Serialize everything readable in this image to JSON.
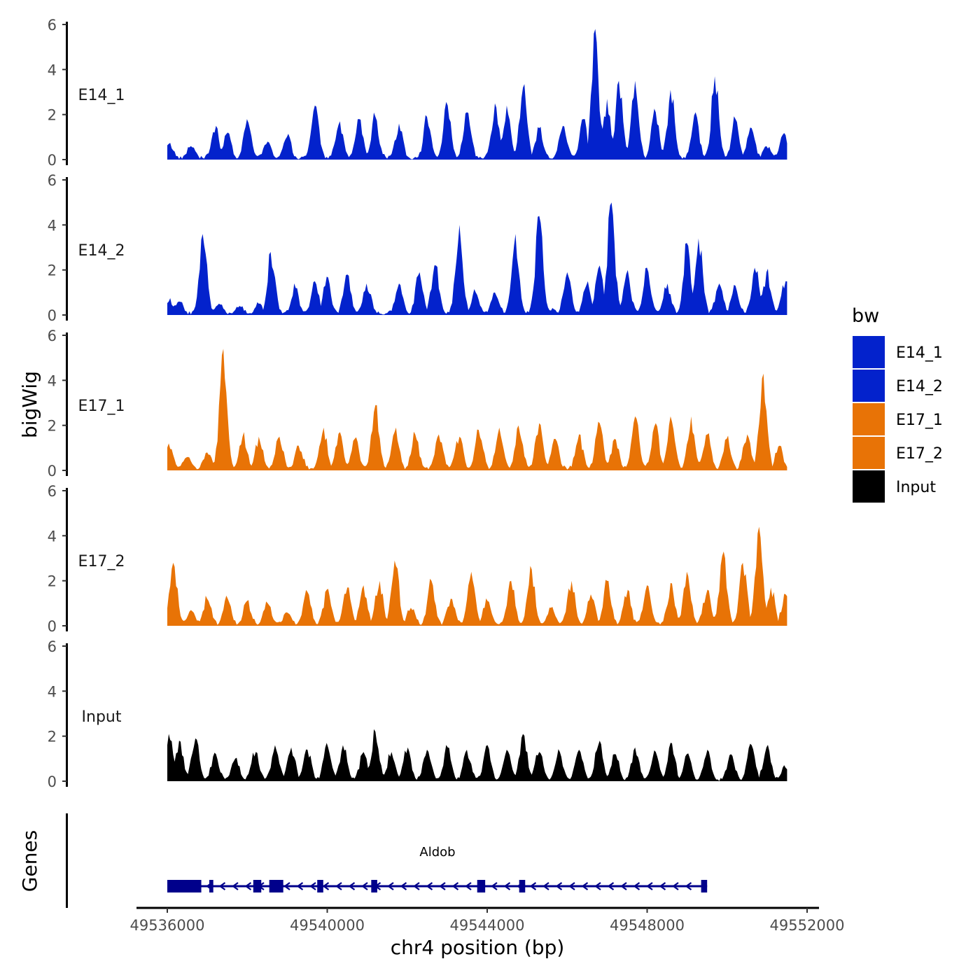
{
  "chart_data": {
    "type": "area",
    "ylabel": "bigWig",
    "xlabel": "chr4 position (bp)",
    "xlim": [
      49535800,
      49552500
    ],
    "data_range": [
      49536000,
      49551500
    ],
    "ylim": [
      0,
      6
    ],
    "y_ticks": [
      0,
      2,
      4,
      6
    ],
    "y_tick_labels": [
      "0",
      "2",
      "4",
      "6"
    ],
    "x_ticks": [
      49536000,
      49540000,
      49544000,
      49548000,
      49552000
    ],
    "x_tick_labels": [
      "49536000",
      "49540000",
      "49544000",
      "49548000",
      "49552000"
    ],
    "legend_title": "bw",
    "legend_position": "right",
    "series": [
      {
        "name": "E14_1",
        "color": "#0322CC",
        "peaks": [
          [
            49536050,
            0.7
          ],
          [
            49536600,
            0.6
          ],
          [
            49537200,
            1.5
          ],
          [
            49537500,
            1.2
          ],
          [
            49538000,
            1.8
          ],
          [
            49538500,
            0.8
          ],
          [
            49539000,
            1.0
          ],
          [
            49539700,
            2.4
          ],
          [
            49540300,
            1.7
          ],
          [
            49540800,
            1.8
          ],
          [
            49541200,
            1.9
          ],
          [
            49541800,
            1.6
          ],
          [
            49542500,
            1.9
          ],
          [
            49543000,
            2.4
          ],
          [
            49543500,
            2.1
          ],
          [
            49544200,
            2.5
          ],
          [
            49544500,
            2.4
          ],
          [
            49544900,
            3.2
          ],
          [
            49545300,
            1.4
          ],
          [
            49545900,
            1.5
          ],
          [
            49546400,
            1.8
          ],
          [
            49546700,
            5.8
          ],
          [
            49547000,
            2.7
          ],
          [
            49547300,
            3.5
          ],
          [
            49547700,
            3.5
          ],
          [
            49548200,
            2.1
          ],
          [
            49548600,
            3.1
          ],
          [
            49549200,
            2.1
          ],
          [
            49549700,
            3.7
          ],
          [
            49550200,
            1.8
          ],
          [
            49550600,
            1.4
          ],
          [
            49551000,
            0.6
          ],
          [
            49551400,
            1.1
          ]
        ]
      },
      {
        "name": "E14_2",
        "color": "#0322CC",
        "peaks": [
          [
            49536050,
            0.6
          ],
          [
            49536300,
            0.6
          ],
          [
            49536900,
            3.6
          ],
          [
            49537300,
            0.5
          ],
          [
            49537800,
            0.4
          ],
          [
            49538300,
            0.5
          ],
          [
            49538600,
            2.8
          ],
          [
            49539200,
            1.2
          ],
          [
            49539700,
            1.5
          ],
          [
            49540000,
            1.7
          ],
          [
            49540500,
            1.8
          ],
          [
            49541000,
            1.4
          ],
          [
            49541800,
            1.4
          ],
          [
            49542300,
            1.9
          ],
          [
            49542700,
            2.2
          ],
          [
            49543300,
            4.0
          ],
          [
            49543700,
            1.0
          ],
          [
            49544200,
            1.0
          ],
          [
            49544700,
            3.6
          ],
          [
            49545300,
            4.4
          ],
          [
            49545600,
            0.2
          ],
          [
            49546000,
            1.9
          ],
          [
            49546500,
            1.5
          ],
          [
            49546800,
            2.2
          ],
          [
            49547100,
            5.0
          ],
          [
            49547500,
            2.0
          ],
          [
            49548000,
            2.1
          ],
          [
            49548500,
            1.4
          ],
          [
            49549000,
            3.2
          ],
          [
            49549300,
            3.4
          ],
          [
            49549800,
            1.4
          ],
          [
            49550200,
            1.3
          ],
          [
            49550700,
            2.1
          ],
          [
            49551000,
            1.9
          ],
          [
            49551450,
            1.5
          ]
        ]
      },
      {
        "name": "E17_1",
        "color": "#E87306",
        "peaks": [
          [
            49536050,
            1.2
          ],
          [
            49536500,
            0.6
          ],
          [
            49537000,
            0.8
          ],
          [
            49537400,
            5.4
          ],
          [
            49537900,
            1.5
          ],
          [
            49538300,
            1.5
          ],
          [
            49538800,
            1.5
          ],
          [
            49539300,
            1.1
          ],
          [
            49539900,
            1.9
          ],
          [
            49540300,
            1.7
          ],
          [
            49540700,
            1.4
          ],
          [
            49541200,
            2.9
          ],
          [
            49541700,
            1.7
          ],
          [
            49542200,
            1.6
          ],
          [
            49542800,
            1.6
          ],
          [
            49543300,
            1.5
          ],
          [
            49543800,
            1.8
          ],
          [
            49544300,
            1.9
          ],
          [
            49544800,
            2.0
          ],
          [
            49545300,
            2.1
          ],
          [
            49545700,
            1.4
          ],
          [
            49546300,
            1.6
          ],
          [
            49546800,
            2.1
          ],
          [
            49547200,
            1.4
          ],
          [
            49547700,
            2.4
          ],
          [
            49548200,
            2.1
          ],
          [
            49548600,
            2.4
          ],
          [
            49549100,
            2.4
          ],
          [
            49549500,
            1.6
          ],
          [
            49550000,
            1.4
          ],
          [
            49550500,
            1.6
          ],
          [
            49550900,
            4.3
          ],
          [
            49551300,
            1.1
          ]
        ]
      },
      {
        "name": "E17_2",
        "color": "#E87306",
        "peaks": [
          [
            49536150,
            2.8
          ],
          [
            49536600,
            0.7
          ],
          [
            49537000,
            1.2
          ],
          [
            49537500,
            1.2
          ],
          [
            49538000,
            1.1
          ],
          [
            49538500,
            1.0
          ],
          [
            49539000,
            0.6
          ],
          [
            49539500,
            1.5
          ],
          [
            49540000,
            1.6
          ],
          [
            49540500,
            1.7
          ],
          [
            49540900,
            1.8
          ],
          [
            49541300,
            2.0
          ],
          [
            49541700,
            2.9
          ],
          [
            49542100,
            0.8
          ],
          [
            49542600,
            2.0
          ],
          [
            49543100,
            1.2
          ],
          [
            49543600,
            2.4
          ],
          [
            49544000,
            1.1
          ],
          [
            49544600,
            2.0
          ],
          [
            49545100,
            2.5
          ],
          [
            49545600,
            0.8
          ],
          [
            49546100,
            2.0
          ],
          [
            49546600,
            1.4
          ],
          [
            49547000,
            2.0
          ],
          [
            49547500,
            1.6
          ],
          [
            49548000,
            1.8
          ],
          [
            49548600,
            1.9
          ],
          [
            49549000,
            2.4
          ],
          [
            49549500,
            1.6
          ],
          [
            49549900,
            3.3
          ],
          [
            49550400,
            2.8
          ],
          [
            49550800,
            4.4
          ],
          [
            49551100,
            1.7
          ],
          [
            49551450,
            1.4
          ]
        ]
      },
      {
        "name": "Input",
        "color": "#000000",
        "peaks": [
          [
            49536050,
            2.1
          ],
          [
            49536300,
            1.8
          ],
          [
            49536700,
            1.9
          ],
          [
            49537200,
            1.2
          ],
          [
            49537700,
            1.0
          ],
          [
            49538200,
            1.3
          ],
          [
            49538700,
            1.6
          ],
          [
            49539100,
            1.5
          ],
          [
            49539500,
            1.4
          ],
          [
            49540000,
            1.7
          ],
          [
            49540400,
            1.6
          ],
          [
            49540900,
            1.3
          ],
          [
            49541200,
            2.2
          ],
          [
            49541600,
            1.3
          ],
          [
            49542000,
            1.5
          ],
          [
            49542500,
            1.4
          ],
          [
            49543000,
            1.5
          ],
          [
            49543500,
            1.4
          ],
          [
            49544000,
            1.6
          ],
          [
            49544500,
            1.4
          ],
          [
            49544900,
            2.1
          ],
          [
            49545300,
            1.3
          ],
          [
            49545800,
            1.3
          ],
          [
            49546300,
            1.4
          ],
          [
            49546800,
            1.8
          ],
          [
            49547200,
            1.2
          ],
          [
            49547700,
            1.5
          ],
          [
            49548200,
            1.3
          ],
          [
            49548600,
            1.7
          ],
          [
            49549000,
            1.2
          ],
          [
            49549500,
            1.4
          ],
          [
            49550100,
            1.2
          ],
          [
            49550600,
            1.6
          ],
          [
            49551000,
            1.5
          ],
          [
            49551450,
            0.6
          ]
        ]
      }
    ],
    "gene": {
      "name": "Aldob",
      "track_label": "Genes",
      "start": 49536000,
      "end": 49549500,
      "strand": "-",
      "exons": [
        [
          49536000,
          49536850
        ],
        [
          49537050,
          49537150
        ],
        [
          49538150,
          49538350
        ],
        [
          49538550,
          49538900
        ],
        [
          49539750,
          49539900
        ],
        [
          49541100,
          49541250
        ],
        [
          49543750,
          49543950
        ],
        [
          49544800,
          49544950
        ],
        [
          49549350,
          49549500
        ]
      ]
    }
  }
}
